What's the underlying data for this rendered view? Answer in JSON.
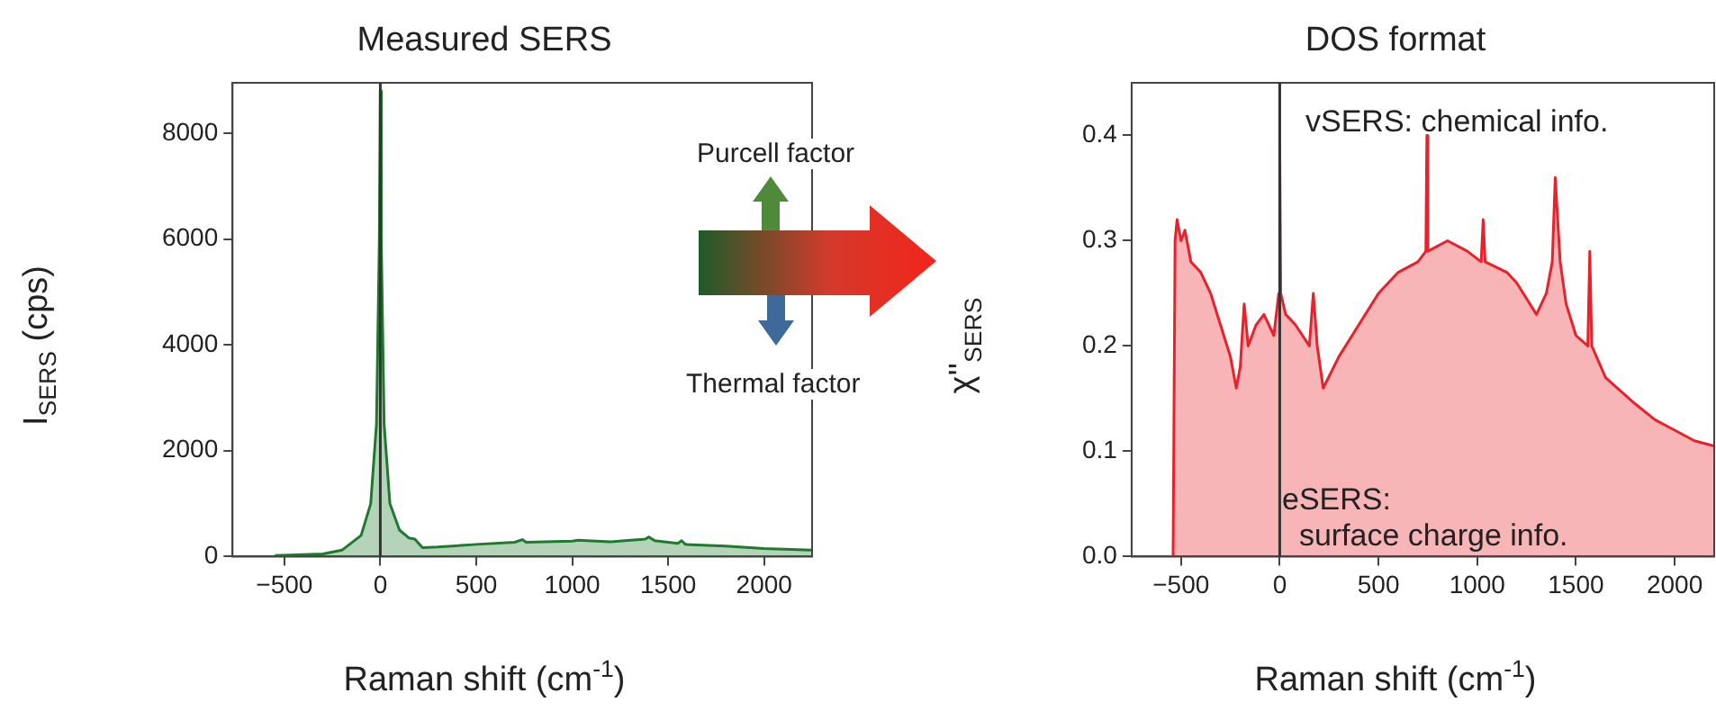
{
  "chart_data": [
    {
      "type": "area",
      "title": "Measured SERS",
      "xlabel": "Raman shift (cm$^{-1}$)",
      "ylabel": "I$_{SERS}$ (cps)",
      "annotations": [
        "Purcell factor",
        "Thermal factor"
      ],
      "xlim": [
        -770,
        2250
      ],
      "xticks": [
        {
          "value": -500,
          "label": "−500"
        },
        0,
        500,
        1000,
        1500,
        2000
      ],
      "ylim": [
        0,
        8950
      ],
      "yticks": [
        0,
        2000,
        4000,
        6000,
        8000
      ],
      "grid": false,
      "legend": false,
      "ref_lines": [
        {
          "axis": "x",
          "value": 0,
          "color": "#333333"
        }
      ],
      "series": [
        {
          "color": "#1e7a2e",
          "x": [
            -550,
            -300,
            -200,
            -100,
            -50,
            -20,
            -5,
            0,
            5,
            20,
            50,
            100,
            150,
            180,
            200,
            220,
            300,
            500,
            700,
            740,
            760,
            1000,
            1030,
            1200,
            1380,
            1400,
            1430,
            1550,
            1570,
            1590,
            1800,
            2000,
            2250
          ],
          "values": [
            20,
            50,
            120,
            400,
            1000,
            2500,
            6000,
            8800,
            6000,
            2500,
            1000,
            500,
            350,
            330,
            250,
            170,
            180,
            230,
            270,
            320,
            270,
            290,
            310,
            280,
            330,
            370,
            300,
            250,
            300,
            230,
            200,
            150,
            120
          ]
        }
      ]
    },
    {
      "type": "area",
      "title": "DOS format",
      "xlabel": "Raman shift (cm$^{-1}$)",
      "ylabel": "χ''$_{SERS}$",
      "annotations": [
        "vSERS: chemical info.",
        "eSERS:\n  surface charge info."
      ],
      "xlim": [
        -750,
        2200
      ],
      "xticks": [
        {
          "value": -500,
          "label": "−500"
        },
        0,
        500,
        1000,
        1500,
        2000
      ],
      "ylim": [
        0,
        0.45
      ],
      "yticks": [
        {
          "value": 0,
          "label": "0.0"
        },
        0.1,
        0.2,
        0.3,
        0.4
      ],
      "grid": false,
      "legend": false,
      "ref_lines": [
        {
          "axis": "x",
          "value": 0,
          "color": "#333333"
        }
      ],
      "series": [
        {
          "color": "#e8212a",
          "x": [
            -540,
            -530,
            -520,
            -500,
            -480,
            -450,
            -400,
            -350,
            -300,
            -250,
            -220,
            -200,
            -180,
            -160,
            -120,
            -80,
            -30,
            -5,
            0,
            5,
            30,
            80,
            150,
            170,
            190,
            220,
            300,
            400,
            500,
            600,
            700,
            740,
            745,
            750,
            850,
            950,
            1020,
            1030,
            1040,
            1150,
            1200,
            1300,
            1350,
            1380,
            1395,
            1420,
            1450,
            1500,
            1560,
            1570,
            1580,
            1650,
            1800,
            1900,
            2000,
            2100,
            2200
          ],
          "values": [
            0,
            0.3,
            0.32,
            0.3,
            0.31,
            0.28,
            0.27,
            0.25,
            0.22,
            0.19,
            0.16,
            0.18,
            0.24,
            0.2,
            0.22,
            0.23,
            0.21,
            0.25,
            0.39,
            0.25,
            0.23,
            0.22,
            0.2,
            0.25,
            0.2,
            0.16,
            0.19,
            0.22,
            0.25,
            0.27,
            0.28,
            0.29,
            0.4,
            0.29,
            0.3,
            0.29,
            0.28,
            0.32,
            0.28,
            0.27,
            0.26,
            0.23,
            0.25,
            0.28,
            0.36,
            0.28,
            0.24,
            0.21,
            0.2,
            0.29,
            0.2,
            0.17,
            0.145,
            0.13,
            0.12,
            0.11,
            0.105
          ]
        }
      ]
    }
  ]
}
